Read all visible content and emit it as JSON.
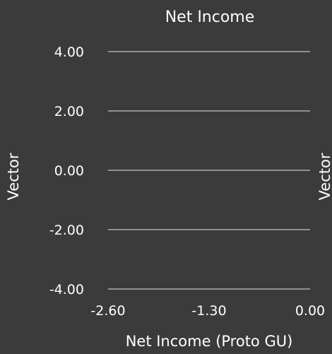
{
  "chart_data": {
    "type": "line",
    "title": "Net Income",
    "xlabel": "Net Income (Proto GU)",
    "ylabel": "Vector",
    "ylabel_right": "Vector",
    "x_ticks": [
      "-2.60",
      "-1.30",
      "0.00"
    ],
    "x_tick_values": [
      -2.6,
      -1.3,
      0.0
    ],
    "y_ticks": [
      "4.00",
      "2.00",
      "0.00",
      "-2.00",
      "-4.00"
    ],
    "y_tick_values": [
      4.0,
      2.0,
      0.0,
      -2.0,
      -4.0
    ],
    "xlim": [
      -2.6,
      0.0
    ],
    "ylim": [
      -4.0,
      4.0
    ],
    "grid": true,
    "series": []
  },
  "colors": {
    "background": "#3b3b3b",
    "text": "#ffffff",
    "grid": "#e6e6e6"
  }
}
